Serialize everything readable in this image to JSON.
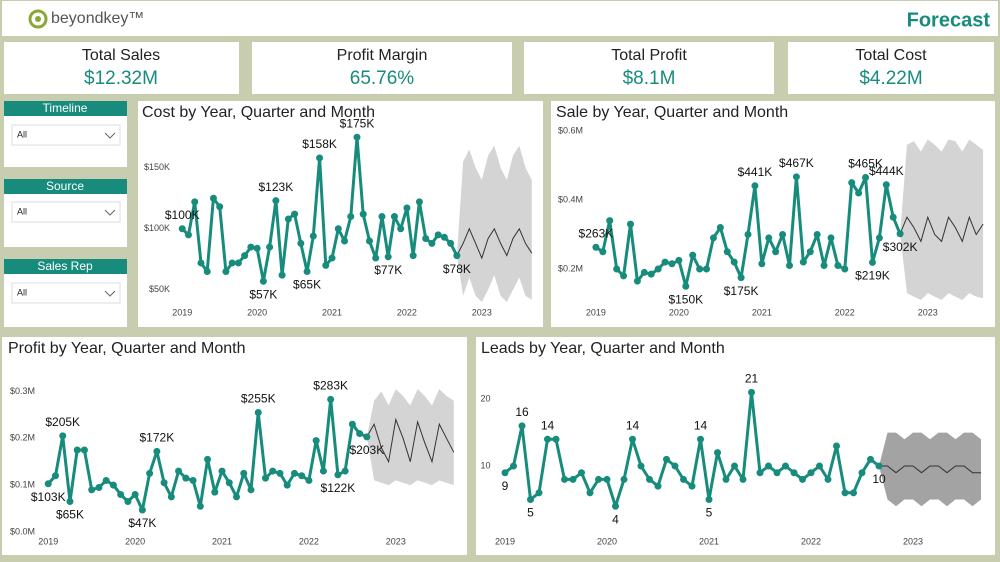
{
  "header": {
    "logo": "beyondkey™",
    "title": "Forecast"
  },
  "kpis": [
    {
      "label": "Total Sales",
      "value": "$12.32M"
    },
    {
      "label": "Profit Margin",
      "value": "65.76%"
    },
    {
      "label": "Total Profit",
      "value": "$8.1M"
    },
    {
      "label": "Total Cost",
      "value": "$4.22M"
    }
  ],
  "filters": [
    {
      "label": "Timeline",
      "value": "All"
    },
    {
      "label": "Source",
      "value": "All"
    },
    {
      "label": "Sales Rep",
      "value": "All"
    }
  ],
  "chart_data": [
    {
      "type": "line",
      "title": "Cost by Year, Quarter and Month",
      "xlim": [
        -1,
        57
      ],
      "xticks": [
        {
          "value": 0,
          "label": "2019"
        },
        {
          "value": 12,
          "label": "2020"
        },
        {
          "value": 24,
          "label": "2021"
        },
        {
          "value": 36,
          "label": "2022"
        },
        {
          "value": 48,
          "label": "2023"
        }
      ],
      "ylim": [
        40000,
        185000
      ],
      "yticks": [
        {
          "value": 50000,
          "label": "$50K"
        },
        {
          "value": 100000,
          "label": "$100K"
        },
        {
          "value": 150000,
          "label": "$150K"
        }
      ],
      "series": [
        {
          "color": "#178c7c",
          "x": [
            0,
            1,
            2,
            3,
            4,
            5,
            6,
            7,
            8,
            9,
            10,
            11,
            12,
            13,
            14,
            15,
            16,
            17,
            18,
            19,
            20,
            21,
            22,
            23,
            24,
            25,
            26,
            27,
            28,
            29,
            30,
            31,
            32,
            33,
            34,
            35,
            36,
            37,
            38,
            39,
            40,
            41,
            42,
            43,
            44
          ],
          "values": [
            100000,
            95000,
            122000,
            72000,
            65000,
            125000,
            118000,
            65000,
            72000,
            72000,
            78000,
            85000,
            84000,
            57000,
            85000,
            123000,
            62000,
            108000,
            112000,
            88000,
            65000,
            94000,
            158000,
            70000,
            76000,
            100000,
            90000,
            110000,
            175000,
            112000,
            90000,
            76000,
            110000,
            77000,
            110000,
            100000,
            117000,
            78000,
            122000,
            92000,
            88000,
            95000,
            93000,
            88000,
            78000
          ],
          "value_labels": [
            "$100K",
            null,
            null,
            null,
            null,
            null,
            null,
            null,
            null,
            null,
            null,
            null,
            null,
            "$57K",
            null,
            "$123K",
            null,
            null,
            null,
            null,
            "$65K",
            null,
            "$158K",
            null,
            null,
            null,
            null,
            null,
            "$175K",
            null,
            null,
            null,
            null,
            "$77K",
            null,
            null,
            null,
            null,
            null,
            null,
            null,
            null,
            null,
            null,
            "$78K"
          ]
        }
      ],
      "forecast": {
        "color": "#333333",
        "band_color": "#d4d4d4",
        "x": [
          44,
          45,
          46,
          47,
          48,
          49,
          50,
          51,
          52,
          53,
          54,
          55,
          56
        ],
        "values": [
          78000,
          88000,
          100000,
          88000,
          76000,
          92000,
          100000,
          88000,
          78000,
          92000,
          100000,
          88000,
          80000
        ],
        "upper": [
          78000,
          155000,
          165000,
          150000,
          140000,
          160000,
          168000,
          150000,
          140000,
          160000,
          168000,
          150000,
          140000
        ],
        "lower": [
          78000,
          45000,
          60000,
          45000,
          40000,
          50000,
          62000,
          45000,
          40000,
          50000,
          60000,
          45000,
          42000
        ]
      }
    },
    {
      "type": "line",
      "title": "Sale by Year, Quarter and Month",
      "xlim": [
        -1,
        57
      ],
      "xticks": [
        {
          "value": 0,
          "label": "2019"
        },
        {
          "value": 12,
          "label": "2020"
        },
        {
          "value": 24,
          "label": "2021"
        },
        {
          "value": 36,
          "label": "2022"
        },
        {
          "value": 48,
          "label": "2023"
        }
      ],
      "ylim": [
        100000,
        620000
      ],
      "yticks": [
        {
          "value": 200000,
          "label": "$0.2M"
        },
        {
          "value": 400000,
          "label": "$0.4M"
        },
        {
          "value": 600000,
          "label": "$0.6M"
        }
      ],
      "series": [
        {
          "color": "#178c7c",
          "x": [
            0,
            1,
            2,
            3,
            4,
            5,
            6,
            7,
            8,
            9,
            10,
            11,
            12,
            13,
            14,
            15,
            16,
            17,
            18,
            19,
            20,
            21,
            22,
            23,
            24,
            25,
            26,
            27,
            28,
            29,
            30,
            31,
            32,
            33,
            34,
            35,
            36,
            37,
            38,
            39,
            40,
            41,
            42,
            43,
            44
          ],
          "values": [
            263000,
            250000,
            340000,
            200000,
            180000,
            330000,
            165000,
            190000,
            185000,
            200000,
            220000,
            215000,
            225000,
            150000,
            240000,
            200000,
            200000,
            290000,
            320000,
            250000,
            220000,
            175000,
            300000,
            441000,
            215000,
            290000,
            250000,
            300000,
            210000,
            467000,
            220000,
            250000,
            300000,
            210000,
            290000,
            210000,
            200000,
            450000,
            420000,
            465000,
            219000,
            290000,
            444000,
            350000,
            302000
          ],
          "value_labels": [
            "$263K",
            null,
            null,
            null,
            null,
            null,
            null,
            null,
            null,
            null,
            null,
            null,
            null,
            "$150K",
            null,
            null,
            null,
            null,
            null,
            null,
            null,
            "$175K",
            null,
            "$441K",
            null,
            null,
            null,
            null,
            null,
            "$467K",
            null,
            null,
            null,
            null,
            null,
            null,
            null,
            null,
            null,
            "$465K",
            "$219K",
            null,
            "$444K",
            null,
            "$302K"
          ]
        }
      ],
      "forecast": {
        "color": "#333333",
        "band_color": "#d4d4d4",
        "x": [
          44,
          45,
          46,
          47,
          48,
          49,
          50,
          51,
          52,
          53,
          54,
          55,
          56
        ],
        "values": [
          302000,
          350000,
          320000,
          280000,
          350000,
          300000,
          280000,
          350000,
          320000,
          280000,
          350000,
          300000,
          330000
        ],
        "upper": [
          302000,
          560000,
          570000,
          540000,
          575000,
          560000,
          540000,
          575000,
          570000,
          540000,
          575000,
          560000,
          545000
        ],
        "lower": [
          302000,
          130000,
          120000,
          110000,
          130000,
          120000,
          110000,
          130000,
          120000,
          110000,
          130000,
          120000,
          115000
        ]
      }
    },
    {
      "type": "line",
      "title": "Profit by Year, Quarter and Month",
      "xlim": [
        -1,
        57
      ],
      "xticks": [
        {
          "value": 0,
          "label": "2019"
        },
        {
          "value": 12,
          "label": "2020"
        },
        {
          "value": 24,
          "label": "2021"
        },
        {
          "value": 36,
          "label": "2022"
        },
        {
          "value": 48,
          "label": "2023"
        }
      ],
      "ylim": [
        0,
        320000
      ],
      "yticks": [
        {
          "value": 0,
          "label": "$0.0M"
        },
        {
          "value": 100000,
          "label": "$0.1M"
        },
        {
          "value": 200000,
          "label": "$0.2M"
        },
        {
          "value": 300000,
          "label": "$0.3M"
        }
      ],
      "series": [
        {
          "color": "#178c7c",
          "x": [
            0,
            1,
            2,
            3,
            4,
            5,
            6,
            7,
            8,
            9,
            10,
            11,
            12,
            13,
            14,
            15,
            16,
            17,
            18,
            19,
            20,
            21,
            22,
            23,
            24,
            25,
            26,
            27,
            28,
            29,
            30,
            31,
            32,
            33,
            34,
            35,
            36,
            37,
            38,
            39,
            40,
            41,
            42,
            43,
            44
          ],
          "values": [
            103000,
            120000,
            205000,
            65000,
            175000,
            175000,
            90000,
            95000,
            110000,
            100000,
            80000,
            65000,
            80000,
            47000,
            125000,
            172000,
            105000,
            75000,
            130000,
            115000,
            110000,
            55000,
            155000,
            85000,
            130000,
            105000,
            75000,
            125000,
            90000,
            255000,
            115000,
            130000,
            125000,
            100000,
            125000,
            120000,
            110000,
            195000,
            130000,
            283000,
            122000,
            130000,
            230000,
            210000,
            203000
          ],
          "value_labels": [
            "$103K",
            null,
            "$205K",
            "$65K",
            null,
            null,
            null,
            null,
            null,
            null,
            null,
            null,
            null,
            "$47K",
            null,
            "$172K",
            null,
            null,
            null,
            null,
            null,
            null,
            null,
            null,
            null,
            null,
            null,
            null,
            null,
            "$255K",
            null,
            null,
            null,
            null,
            null,
            null,
            null,
            null,
            null,
            "$283K",
            "$122K",
            null,
            null,
            null,
            "$203K"
          ]
        }
      ],
      "forecast": {
        "color": "#333333",
        "band_color": "#d4d4d4",
        "x": [
          44,
          45,
          46,
          47,
          48,
          49,
          50,
          51,
          52,
          53,
          54,
          55,
          56
        ],
        "values": [
          203000,
          230000,
          180000,
          150000,
          240000,
          200000,
          150000,
          235000,
          190000,
          150000,
          230000,
          200000,
          170000
        ],
        "upper": [
          203000,
          280000,
          300000,
          270000,
          305000,
          290000,
          270000,
          305000,
          290000,
          270000,
          305000,
          290000,
          280000
        ],
        "lower": [
          203000,
          110000,
          105000,
          100000,
          110000,
          105000,
          100000,
          110000,
          105000,
          100000,
          110000,
          105000,
          100000
        ]
      }
    },
    {
      "type": "line",
      "title": "Leads by Year, Quarter and Month",
      "xlim": [
        -1,
        57
      ],
      "xticks": [
        {
          "value": 0,
          "label": "2019"
        },
        {
          "value": 12,
          "label": "2020"
        },
        {
          "value": 24,
          "label": "2021"
        },
        {
          "value": 36,
          "label": "2022"
        },
        {
          "value": 48,
          "label": "2023"
        }
      ],
      "ylim": [
        0,
        23
      ],
      "yticks": [
        10,
        20
      ],
      "series": [
        {
          "color": "#178c7c",
          "x": [
            0,
            1,
            2,
            3,
            4,
            5,
            6,
            7,
            8,
            9,
            10,
            11,
            12,
            13,
            14,
            15,
            16,
            17,
            18,
            19,
            20,
            21,
            22,
            23,
            24,
            25,
            26,
            27,
            28,
            29,
            30,
            31,
            32,
            33,
            34,
            35,
            36,
            37,
            38,
            39,
            40,
            41,
            42,
            43,
            44
          ],
          "values": [
            9,
            10,
            16,
            5,
            6,
            14,
            14,
            8,
            8,
            9,
            6,
            8,
            8,
            4,
            8,
            14,
            10,
            8,
            7,
            11,
            10,
            8,
            7,
            14,
            5,
            12,
            8,
            10,
            8,
            21,
            9,
            10,
            9,
            10,
            9,
            8,
            9,
            10,
            8,
            13,
            6,
            6,
            9,
            11,
            10
          ],
          "value_labels": [
            "9",
            null,
            "16",
            "5",
            null,
            "14",
            null,
            null,
            null,
            null,
            null,
            null,
            null,
            "4",
            null,
            "14",
            null,
            null,
            null,
            null,
            null,
            null,
            null,
            "14",
            "5",
            null,
            null,
            null,
            null,
            "21",
            null,
            null,
            null,
            null,
            null,
            null,
            null,
            null,
            null,
            null,
            null,
            null,
            null,
            null,
            "10"
          ]
        }
      ],
      "forecast": {
        "color": "#333333",
        "band_color": "#a3a3a3",
        "x": [
          44,
          45,
          46,
          47,
          48,
          49,
          50,
          51,
          52,
          53,
          54,
          55,
          56
        ],
        "values": [
          10,
          10,
          9,
          10,
          10,
          9,
          10,
          10,
          9,
          10,
          10,
          9,
          9
        ],
        "upper": [
          10,
          15,
          15,
          14,
          15,
          15,
          14,
          15,
          15,
          14,
          15,
          15,
          14
        ],
        "lower": [
          10,
          5,
          4,
          5,
          5,
          4,
          5,
          5,
          4,
          5,
          5,
          4,
          5
        ]
      }
    }
  ]
}
